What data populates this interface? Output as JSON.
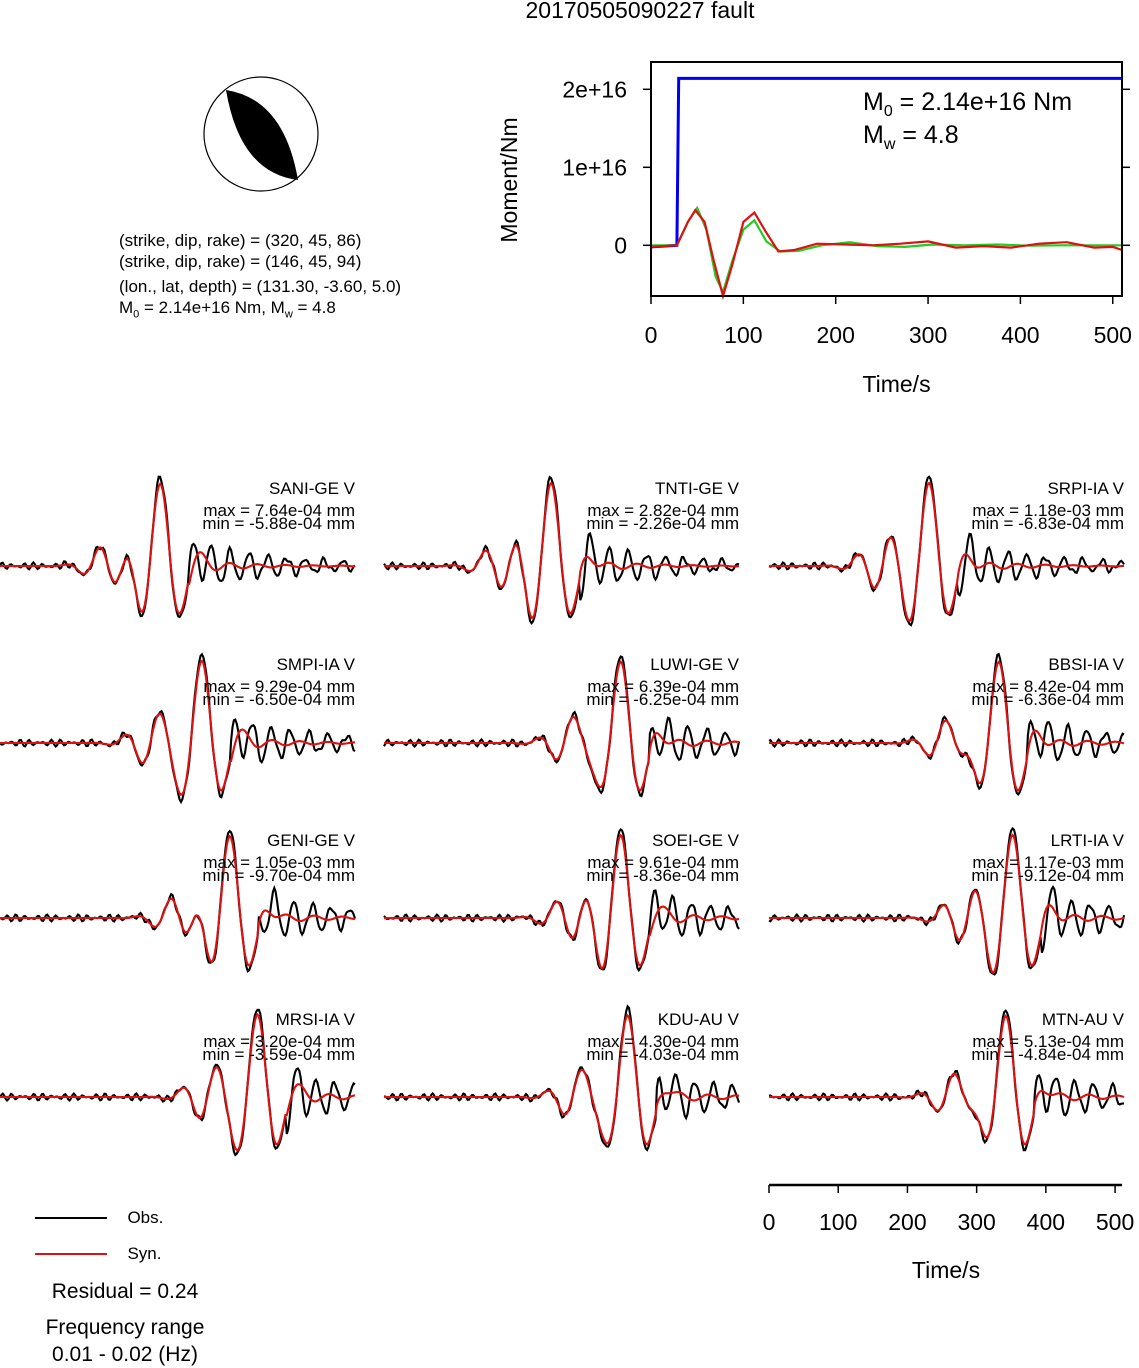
{
  "title": "20170505090227 fault",
  "mechanism": {
    "line1": "(strike, dip, rake) = (320, 45, 86)",
    "line2": "(strike, dip, rake) = (146, 45, 94)",
    "line3": "(lon., lat, depth) = (131.30, -3.60, 5.0)",
    "m0_label": "M",
    "m0_sub": "0",
    "m0_value": " = 2.14e+16 Nm, M",
    "mw_sub": "w",
    "mw_value": " = 4.8"
  },
  "chart_data": [
    {
      "type": "line",
      "id": "moment-function",
      "xlabel": "Time/s",
      "ylabel": "Moment/Nm",
      "xlim": [
        0,
        510
      ],
      "ylim": [
        -6500000000000000.0,
        2.35e+16
      ],
      "xticks": [
        0,
        100,
        200,
        300,
        400,
        500
      ],
      "yticks": [
        0,
        1e+16,
        2e+16
      ],
      "ytick_labels": [
        "0",
        "1e+16",
        "2e+16"
      ],
      "annotation": {
        "m0_label": "M",
        "m0_sub": "0",
        "m0_text": " = 2.14e+16 Nm",
        "mw_label": "M",
        "mw_sub": "w",
        "mw_text": " = 4.8"
      },
      "series": [
        {
          "color": "#0000ee",
          "x": [
            0,
            28,
            30,
            510
          ],
          "y": [
            -200000000000000.0,
            0,
            2.14e+16,
            2.14e+16
          ]
        },
        {
          "color": "#22cc22",
          "x": [
            0,
            28,
            40,
            50,
            60,
            70,
            78,
            88,
            100,
            112,
            125,
            140,
            160,
            185,
            215,
            245,
            275,
            305,
            340,
            375,
            410,
            445,
            480,
            510
          ],
          "y": [
            0,
            0,
            3000000000000000.0,
            4800000000000000.0,
            2000000000000000.0,
            -4000000000000000.0,
            -6000000000000000.0,
            -2000000000000000.0,
            2000000000000000.0,
            3200000000000000.0,
            500000000000000.0,
            -800000000000000.0,
            -700000000000000.0,
            0,
            400000000000000.0,
            -100000000000000.0,
            -200000000000000.0,
            100000000000000.0,
            0,
            100000000000000.0,
            -50000000000000.0,
            0,
            0,
            0
          ]
        },
        {
          "color": "#dd1111",
          "x": [
            0,
            28,
            40,
            48,
            58,
            68,
            78,
            88,
            100,
            112,
            124,
            138,
            155,
            180,
            210,
            240,
            270,
            300,
            330,
            360,
            390,
            420,
            450,
            480,
            500,
            510
          ],
          "y": [
            -200000000000000.0,
            0,
            3000000000000000.0,
            4500000000000000.0,
            3000000000000000.0,
            -2000000000000000.0,
            -6500000000000000.0,
            -2500000000000000.0,
            3000000000000000.0,
            4200000000000000.0,
            1800000000000000.0,
            -800000000000000.0,
            -600000000000000.0,
            200000000000000.0,
            100000000000000.0,
            0,
            200000000000000.0,
            500000000000000.0,
            -300000000000000.0,
            -100000000000000.0,
            -300000000000000.0,
            200000000000000.0,
            400000000000000.0,
            -300000000000000.0,
            -200000000000000.0,
            -600000000000000.0
          ]
        }
      ]
    },
    {
      "type": "line",
      "id": "waveform-grid",
      "xlabel": "Time/s",
      "xlim": [
        0,
        510
      ],
      "xticks": [
        0,
        100,
        200,
        300,
        400,
        500
      ],
      "legend": [
        {
          "name": "Obs.",
          "color": "#000000"
        },
        {
          "name": "Syn.",
          "color": "#dd1111"
        }
      ],
      "stations": [
        {
          "name": "SANI-GE V",
          "max": "max = 7.64e-04 mm",
          "min": "min = -5.88e-04 mm",
          "peak": 230
        },
        {
          "name": "TNTI-GE V",
          "max": "max = 2.82e-04 mm",
          "min": "min = -2.26e-04 mm",
          "peak": 240
        },
        {
          "name": "SRPI-IA V",
          "max": "max = 1.18e-03 mm",
          "min": "min = -6.83e-04 mm",
          "peak": 230
        },
        {
          "name": "SMPI-IA V",
          "max": "max = 9.29e-04 mm",
          "min": "min = -6.50e-04 mm",
          "peak": 290
        },
        {
          "name": "LUWI-GE V",
          "max": "max = 6.39e-04 mm",
          "min": "min = -6.25e-04 mm",
          "peak": 340
        },
        {
          "name": "BBSI-IA V",
          "max": "max = 8.42e-04 mm",
          "min": "min = -6.36e-04 mm",
          "peak": 330
        },
        {
          "name": "GENI-GE V",
          "max": "max = 1.05e-03 mm",
          "min": "min = -9.70e-04 mm",
          "peak": 330
        },
        {
          "name": "SOEI-GE V",
          "max": "max = 9.61e-04 mm",
          "min": "min = -8.36e-04 mm",
          "peak": 340
        },
        {
          "name": "LRTI-IA V",
          "max": "max = 1.17e-03 mm",
          "min": "min = -9.12e-04 mm",
          "peak": 350
        },
        {
          "name": "MRSI-IA V",
          "max": "max = 3.20e-04 mm",
          "min": "min = -3.59e-04 mm",
          "peak": 370
        },
        {
          "name": "KDU-AU V",
          "max": "max = 4.30e-04 mm",
          "min": "min = -4.03e-04 mm",
          "peak": 350
        },
        {
          "name": "MTN-AU V",
          "max": "max = 5.13e-04 mm",
          "min": "min = -4.84e-04 mm",
          "peak": 340
        }
      ]
    }
  ],
  "summary": {
    "residual": "Residual = 0.24",
    "freq_label": "Frequency range",
    "freq_value": "0.01 - 0.02 (Hz)"
  }
}
